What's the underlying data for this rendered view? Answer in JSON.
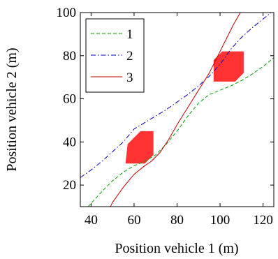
{
  "chart_data": {
    "type": "line",
    "title": "",
    "xlabel": "Position vehicle 1 (m)",
    "ylabel": "Position vehicle 2 (m)",
    "xlim": [
      35,
      125
    ],
    "ylim": [
      10,
      100
    ],
    "xticks": [
      40,
      60,
      80,
      100,
      120
    ],
    "yticks": [
      20,
      40,
      60,
      80,
      100
    ],
    "grid": false,
    "legend_position": "top-left",
    "series": [
      {
        "name": "1",
        "color": "#00a000",
        "line_style": "dashed",
        "points": [
          [
            37,
            8
          ],
          [
            40,
            11.5
          ],
          [
            45,
            17
          ],
          [
            50,
            22
          ],
          [
            55,
            26
          ],
          [
            60,
            29
          ],
          [
            65,
            31
          ],
          [
            70,
            34
          ],
          [
            75,
            39
          ],
          [
            80,
            45
          ],
          [
            85,
            52
          ],
          [
            90,
            58
          ],
          [
            95,
            62
          ],
          [
            100,
            64
          ],
          [
            105,
            66
          ],
          [
            110,
            68.5
          ],
          [
            115,
            71.5
          ],
          [
            120,
            75
          ],
          [
            125,
            79
          ]
        ]
      },
      {
        "name": "2",
        "color": "#0000c0",
        "line_style": "dash-dot",
        "points": [
          [
            35,
            23.5
          ],
          [
            40,
            27
          ],
          [
            45,
            31
          ],
          [
            50,
            35.5
          ],
          [
            55,
            40
          ],
          [
            60,
            46
          ],
          [
            65,
            49
          ],
          [
            70,
            52
          ],
          [
            75,
            55
          ],
          [
            80,
            58.5
          ],
          [
            85,
            62
          ],
          [
            90,
            66
          ],
          [
            95,
            70.5
          ],
          [
            100,
            76
          ],
          [
            105,
            83
          ],
          [
            110,
            88.5
          ],
          [
            115,
            93
          ],
          [
            120,
            97
          ],
          [
            125,
            101
          ]
        ]
      },
      {
        "name": "3",
        "color": "#c00000",
        "line_style": "solid",
        "points": [
          [
            48,
            8
          ],
          [
            50,
            12
          ],
          [
            55,
            19
          ],
          [
            60,
            25
          ],
          [
            65,
            29
          ],
          [
            68,
            31
          ],
          [
            72,
            35
          ],
          [
            76,
            41
          ],
          [
            80,
            48
          ],
          [
            85,
            56
          ],
          [
            90,
            64
          ],
          [
            95,
            72
          ],
          [
            98,
            78
          ],
          [
            102,
            86
          ],
          [
            106,
            94
          ],
          [
            110,
            101
          ]
        ]
      }
    ],
    "obstacles": [
      {
        "color": "#ff3333",
        "corners": [
          [
            56,
            30
          ],
          [
            57,
            39
          ],
          [
            63,
            45
          ],
          [
            69,
            45
          ],
          [
            69,
            34
          ],
          [
            65,
            30
          ]
        ]
      },
      {
        "color": "#ff3333",
        "corners": [
          [
            97,
            68
          ],
          [
            97,
            78
          ],
          [
            101,
            82
          ],
          [
            111,
            82
          ],
          [
            111,
            72
          ],
          [
            107,
            68
          ]
        ]
      }
    ]
  }
}
